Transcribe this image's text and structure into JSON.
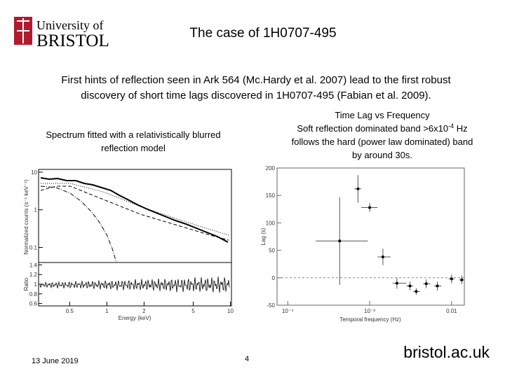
{
  "header": {
    "logo_line1": "University of",
    "logo_line2": "BRISTOL",
    "title": "The case of 1H0707-495"
  },
  "intro": [
    "First hints of reflection seen in Ark 564 (Mc.Hardy et al. 2007) lead to the first robust",
    "discovery of short time lags discovered in 1H0707-495 (Fabian et al. 2009)."
  ],
  "left_caption": [
    "Spectrum fitted with a relativistically blurred",
    "reflection model"
  ],
  "right_caption": {
    "line1": "Time Lag vs Frequency",
    "line2": [
      "Soft reflection dominated band >6x10",
      "-4",
      " Hz"
    ],
    "line3": "follows the hard (power law dominated) band",
    "line4": "by around 30s."
  },
  "left_plot": {
    "ylabel": "Normalized counts (s⁻¹ keV⁻¹)",
    "ratio_label": "Ratio",
    "xlabel": "Energy (keV)",
    "xscale": "log",
    "xlim": [
      0.28,
      10.2
    ],
    "xticks": [
      0.5,
      1,
      2,
      5,
      10
    ],
    "yscale": "log",
    "ylim": [
      0.04,
      11.8
    ],
    "yticks": [
      {
        "value": 10,
        "label": "10"
      },
      {
        "value": 1,
        "label": "1"
      },
      {
        "value": 0.1,
        "label": "0.1"
      }
    ],
    "ratio_ylim": [
      0.55,
      1.45
    ],
    "ratio_yticks": [
      {
        "value": 1.4,
        "label": "1.4"
      },
      {
        "value": 1.2,
        "label": "1.2"
      },
      1,
      {
        "value": 0.8,
        "label": "0.8"
      },
      {
        "value": 0.6,
        "label": "0.6"
      }
    ]
  },
  "chart_data": {
    "type": "scatter",
    "xlabel": "Temporal frequency (Hz)",
    "ylabel": "Lag (s)",
    "xscale": "log",
    "xlim": [
      7.4e-05,
      0.0143
    ],
    "xticks": [
      {
        "value": 0.0001,
        "label": "10⁻⁴"
      },
      {
        "value": 0.001,
        "label": "10⁻³"
      },
      0.01
    ],
    "ylim": [
      -50,
      200
    ],
    "yticks": [
      -50,
      0,
      50,
      100,
      150,
      200
    ],
    "color": "#000000",
    "x": [
      0.00043,
      0.00072,
      0.001,
      0.00145,
      0.00215,
      0.0031,
      0.0037,
      0.0049,
      0.0067,
      0.01,
      0.0133
    ],
    "x_low": [
      0.00022,
      0.00065,
      0.00079,
      0.00125,
      0.0019,
      0.0028,
      0.0034,
      0.0045,
      0.0061,
      0.0092,
      0.0124
    ],
    "x_high": [
      0.00095,
      0.00079,
      0.00125,
      0.0018,
      0.0028,
      0.0034,
      0.0041,
      0.0055,
      0.0075,
      0.0108,
      0.0143
    ],
    "values": [
      67,
      162,
      128,
      38,
      -10,
      -15,
      -25,
      -11,
      -15,
      -2,
      -4
    ],
    "yerr": [
      80,
      25,
      8,
      15,
      10,
      8,
      6,
      8,
      8,
      8,
      8
    ]
  },
  "footer": {
    "date": "13 June 2019",
    "page": "4",
    "site": "bristol.ac.uk"
  }
}
